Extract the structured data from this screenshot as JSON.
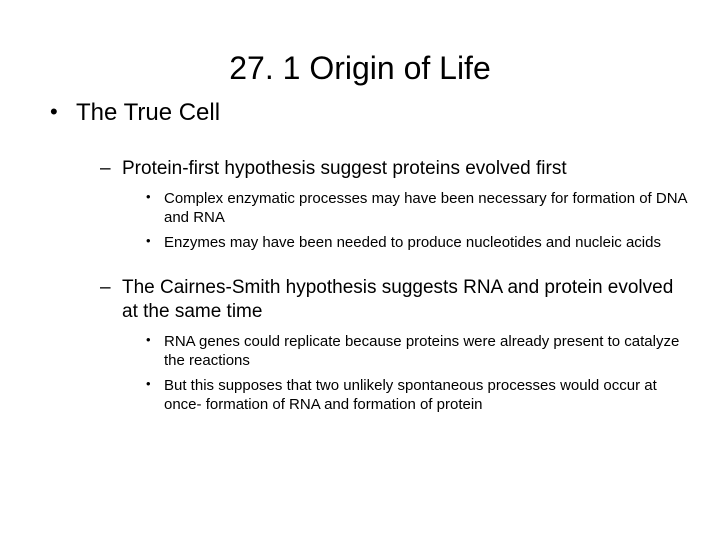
{
  "title": "27. 1  Origin of Life",
  "bullets": {
    "l1": [
      {
        "text": "The True Cell",
        "l2": [
          {
            "text": "Protein-first hypothesis suggest proteins evolved first",
            "l3": [
              "Complex enzymatic processes may have been necessary for formation of DNA and RNA",
              "Enzymes may have been needed to produce nucleotides and nucleic acids"
            ]
          },
          {
            "text": "The Cairnes-Smith hypothesis suggests RNA and protein evolved at the same time",
            "l3": [
              "RNA genes could replicate because proteins were already present to catalyze the reactions",
              "But this supposes that two unlikely spontaneous processes would occur at once- formation of RNA and formation of protein"
            ]
          }
        ]
      }
    ]
  },
  "colors": {
    "background": "#ffffff",
    "text": "#000000"
  },
  "fonts": {
    "family": "Arial",
    "title_size": 32,
    "l1_size": 24,
    "l2_size": 19,
    "l3_size": 15
  }
}
